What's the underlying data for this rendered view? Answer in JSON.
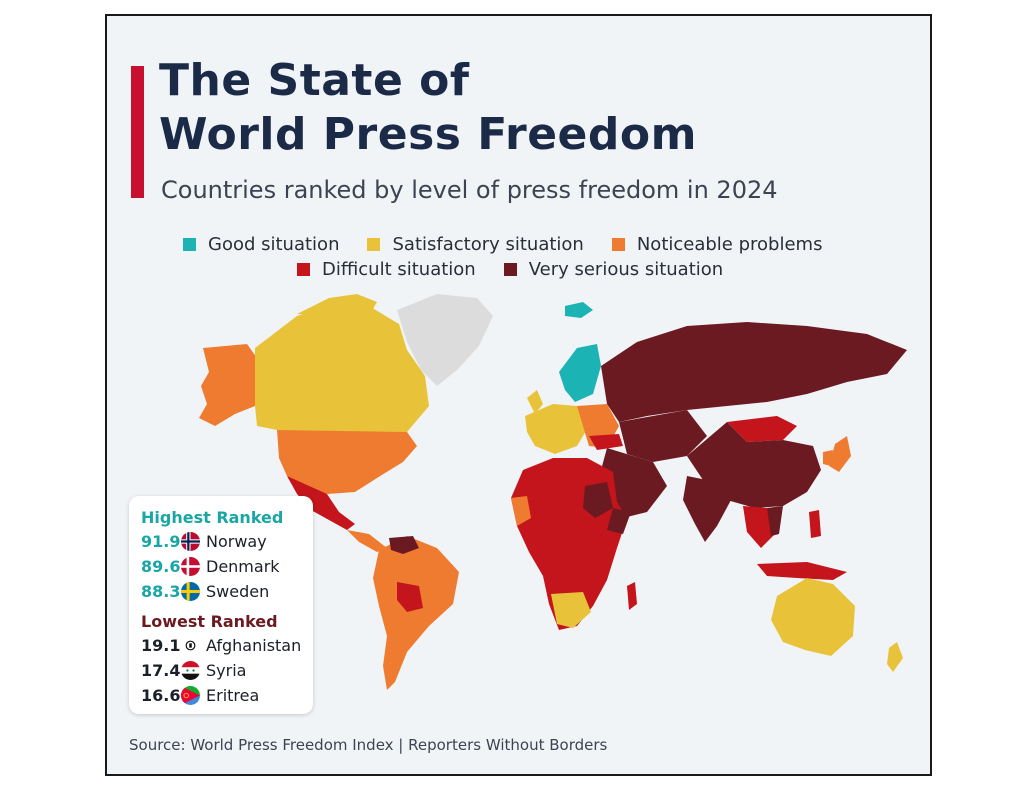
{
  "title_line1": "The State of",
  "title_line2": "World Press Freedom",
  "subtitle": "Countries ranked by level of press freedom in 2024",
  "legend": [
    {
      "label": "Good situation",
      "color": "#1bb3b3"
    },
    {
      "label": "Satisfactory situation",
      "color": "#e8c33a"
    },
    {
      "label": "Noticeable problems",
      "color": "#ef7b30"
    },
    {
      "label": "Difficult situation",
      "color": "#c3151b"
    },
    {
      "label": "Very serious situation",
      "color": "#6b1a22"
    }
  ],
  "no_data_color": "#dcdcdc",
  "highest_ranked": {
    "heading": "Highest Ranked",
    "rows": [
      {
        "score": "91.9",
        "country": "Norway",
        "flag": "norway-flag-icon"
      },
      {
        "score": "89.6",
        "country": "Denmark",
        "flag": "denmark-flag-icon"
      },
      {
        "score": "88.3",
        "country": "Sweden",
        "flag": "sweden-flag-icon"
      }
    ]
  },
  "lowest_ranked": {
    "heading": "Lowest Ranked",
    "rows": [
      {
        "score": "19.1",
        "country": "Afghanistan",
        "flag": "afghanistan-flag-icon"
      },
      {
        "score": "17.4",
        "country": "Syria",
        "flag": "syria-flag-icon"
      },
      {
        "score": "16.6",
        "country": "Eritrea",
        "flag": "eritrea-flag-icon"
      }
    ]
  },
  "source": "Source: World Press Freedom Index | Reporters Without Borders"
}
